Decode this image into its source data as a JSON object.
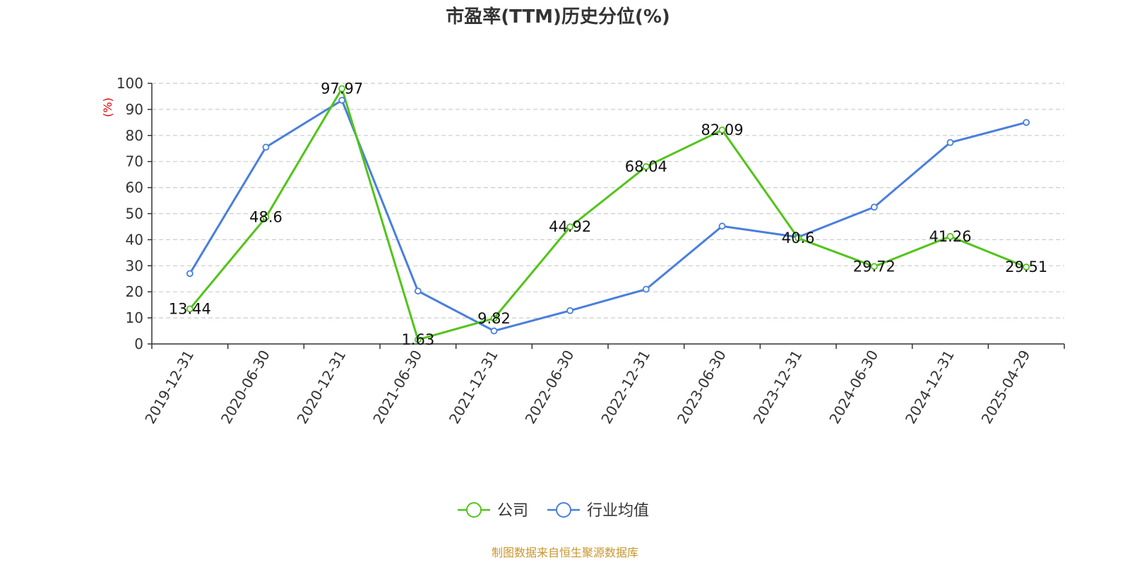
{
  "chart_data": {
    "type": "line",
    "title": "市盈率(TTM)历史分位(%)",
    "ylabel": "(%)",
    "ylim": [
      0,
      100
    ],
    "yticks": [
      0,
      10,
      20,
      30,
      40,
      50,
      60,
      70,
      80,
      90,
      100
    ],
    "categories": [
      "2019-12-31",
      "2020-06-30",
      "2020-12-31",
      "2021-06-30",
      "2021-12-31",
      "2022-06-30",
      "2022-12-31",
      "2023-06-30",
      "2023-12-31",
      "2024-06-30",
      "2024-12-31",
      "2025-04-29"
    ],
    "series": [
      {
        "name": "公司",
        "color": "#52c41a",
        "show_labels": true,
        "values": [
          13.44,
          48.6,
          97.97,
          1.63,
          9.82,
          44.92,
          68.04,
          82.09,
          40.6,
          29.72,
          41.26,
          29.51
        ]
      },
      {
        "name": "行业均值",
        "color": "#4a7fdc",
        "show_labels": false,
        "values": [
          27,
          75.5,
          93.5,
          20.3,
          5,
          12.8,
          21,
          45.2,
          41,
          52.5,
          77.3,
          85
        ]
      }
    ],
    "grid": true,
    "legend_position": "bottom-center",
    "source": "制图数据来自恒生聚源数据库",
    "source_color": "#c8962b",
    "unit_color": "#e00000"
  }
}
